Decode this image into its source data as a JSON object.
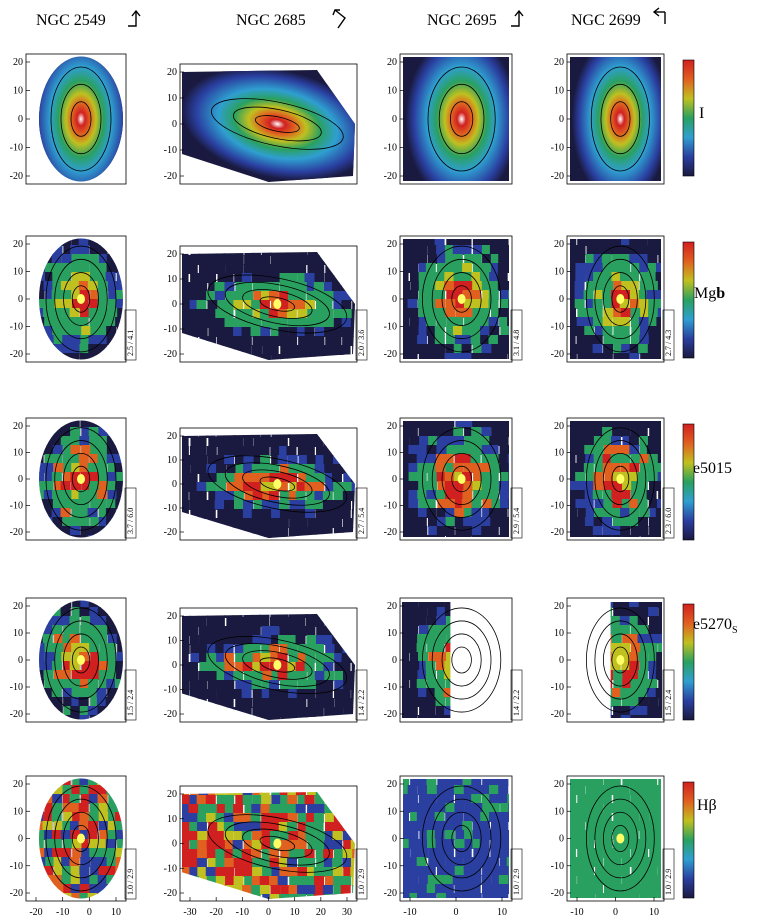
{
  "columns": [
    {
      "name": "NGC 2549",
      "arrow": "up-right-corner"
    },
    {
      "name": "NGC 2685",
      "arrow": "zigzag"
    },
    {
      "name": "NGC 2695",
      "arrow": "up-right-corner"
    },
    {
      "name": "NGC 2699",
      "arrow": "left-down-corner"
    }
  ],
  "rows": [
    {
      "label": "I",
      "label_sub": "",
      "ranges": [
        "",
        "",
        "",
        ""
      ]
    },
    {
      "label": "Mg",
      "label_bold": "b",
      "label_sub": "",
      "ranges": [
        "2.5 / 4.1",
        "2.0 / 3.6",
        "3.1 / 4.8",
        "2.7 / 4.3"
      ]
    },
    {
      "label": "Fe5015",
      "label_sub": "",
      "ranges": [
        "3.7 / 6.0",
        "2.7 / 5.4",
        "2.9 / 5.4",
        "2.3 / 6.0"
      ]
    },
    {
      "label": "Fe5270",
      "label_sub": "S",
      "ranges": [
        "1.5 / 2.4",
        "1.4 / 2.2",
        "1.4 / 2.2",
        "1.5 / 2.4"
      ]
    },
    {
      "label": "Hβ",
      "label_sub": "",
      "ranges": [
        "1.0 / 2.9",
        "1.0 / 2.9",
        "1.0 / 2.9",
        "1.0 / 2.9"
      ]
    }
  ],
  "y_ticks": [
    "20",
    "10",
    "0",
    "-10",
    "-20"
  ],
  "x_ticks": [
    [
      "-20",
      "-10",
      "0",
      "10"
    ],
    [
      "-30",
      "-20",
      "-10",
      "0",
      "10",
      "20",
      "30"
    ],
    [
      "-10",
      "0",
      "10"
    ],
    [
      "-10",
      "0",
      "10"
    ]
  ],
  "colors": {
    "colorbar": [
      "#1a1a40",
      "#2a3fa0",
      "#2f9fd0",
      "#2aa060",
      "#c0c020",
      "#e06020",
      "#d02020"
    ]
  }
}
